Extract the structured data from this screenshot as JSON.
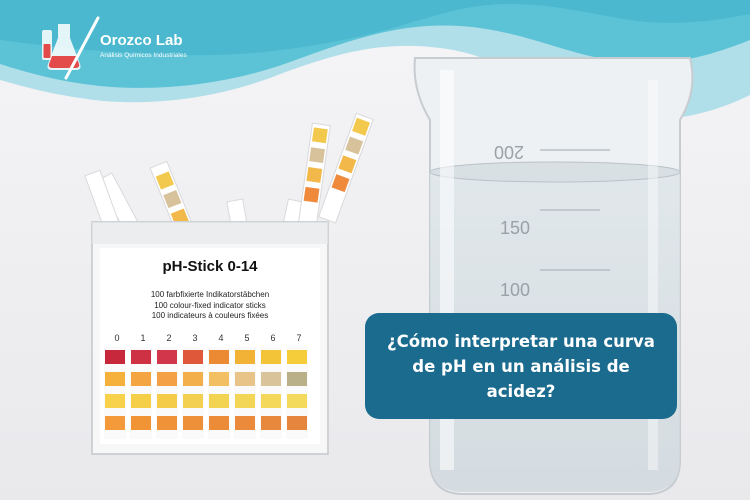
{
  "brand": {
    "name": "Orozco Lab",
    "tagline": "Análisis Químicos Industriales"
  },
  "product": {
    "title": "pH-Stick 0-14",
    "lines": [
      "100 farbfixierte Indikatorstäbchen",
      "100 colour-fixed indicator sticks",
      "100 indicateurs à couleurs fixées"
    ],
    "scale": [
      "0",
      "1",
      "2",
      "3",
      "4",
      "5",
      "6",
      "7"
    ]
  },
  "beaker": {
    "marks": [
      "200",
      "150",
      "100"
    ]
  },
  "headline": {
    "text": "¿Cómo interpretar una curva de pH en un análisis de acidez?"
  },
  "colors": {
    "wave_dark": "#5cc3d6",
    "wave_light": "#aadde8",
    "headline_box": "#1b6b8f",
    "background": "#f1f1f3"
  }
}
